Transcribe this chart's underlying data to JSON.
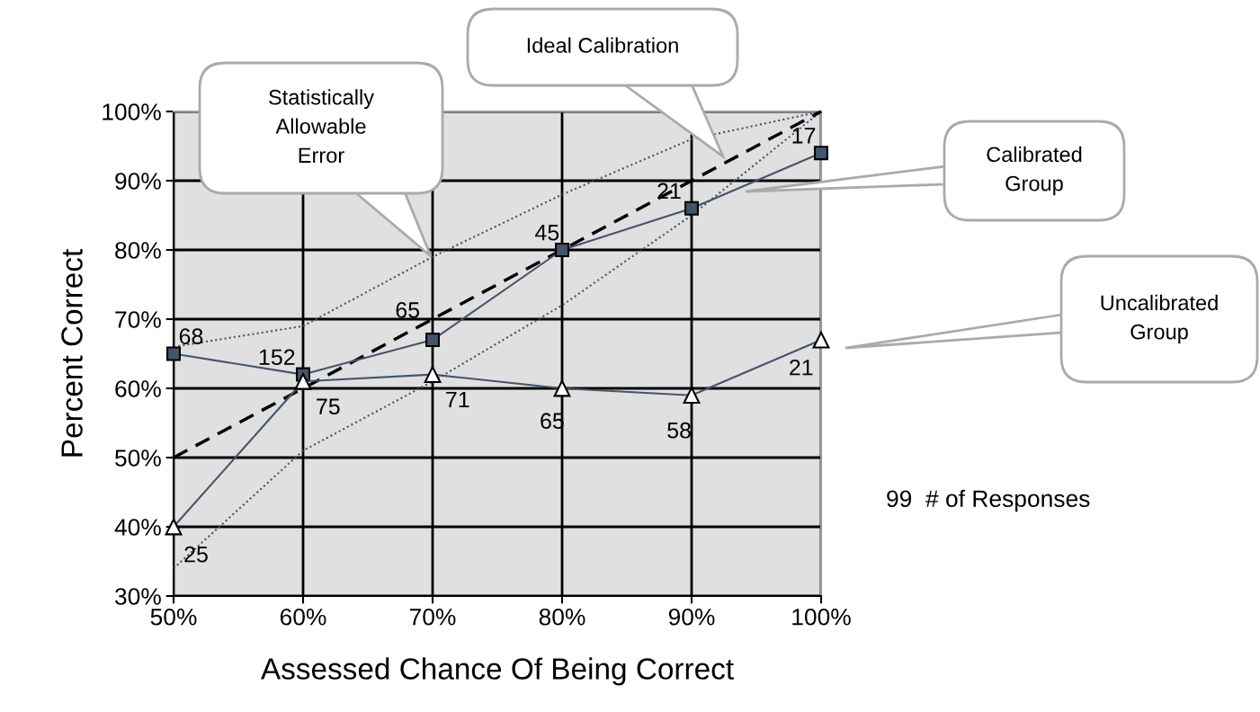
{
  "chart_data": {
    "type": "line",
    "xlabel": "Assessed Chance Of Being Correct",
    "ylabel": "Percent Correct",
    "x": [
      50,
      60,
      70,
      80,
      90,
      100
    ],
    "xlim": [
      50,
      100
    ],
    "xticks": [
      {
        "value": 50,
        "label": "50%"
      },
      {
        "value": 60,
        "label": "60%"
      },
      {
        "value": 70,
        "label": "70%"
      },
      {
        "value": 80,
        "label": "80%"
      },
      {
        "value": 90,
        "label": "90%"
      },
      {
        "value": 100,
        "label": "100%"
      }
    ],
    "ylim": [
      30,
      100
    ],
    "yticks": [
      {
        "value": 30,
        "label": "30%"
      },
      {
        "value": 40,
        "label": "40%"
      },
      {
        "value": 50,
        "label": "50%"
      },
      {
        "value": 60,
        "label": "60%"
      },
      {
        "value": 70,
        "label": "70%"
      },
      {
        "value": 80,
        "label": "80%"
      },
      {
        "value": 90,
        "label": "90%"
      },
      {
        "value": 100,
        "label": "100%"
      }
    ],
    "grid": true,
    "series": [
      {
        "color": "#44546a",
        "values": [
          66,
          69,
          79,
          88,
          96,
          100
        ],
        "marker": "none",
        "line_style": "dotted"
      },
      {
        "color": "#44546a",
        "values": [
          34,
          51,
          61,
          72,
          85,
          100
        ],
        "marker": "none",
        "line_style": "dotted"
      },
      {
        "color": "#000000",
        "values": [
          50,
          60,
          70,
          80,
          90,
          100
        ],
        "marker": "none",
        "line_style": "dashed"
      },
      {
        "color": "#44546a",
        "values": [
          65,
          62,
          67,
          80,
          86,
          94
        ],
        "marker": "square",
        "line_style": "solid"
      },
      {
        "color": "#44546a",
        "values": [
          40,
          61,
          62,
          60,
          59,
          67
        ],
        "marker": "triangle",
        "line_style": "solid"
      }
    ],
    "annotations": [
      "Statistically\nAllowable\nError",
      "Ideal Calibration",
      "Calibrated\nGroup",
      "Uncalibrated\nGroup",
      {
        "text": "68",
        "x": 50,
        "y": 65
      },
      {
        "text": "152",
        "x": 60,
        "y": 62
      },
      {
        "text": "65",
        "x": 70,
        "y": 67
      },
      {
        "text": "45",
        "x": 80,
        "y": 80
      },
      {
        "text": "21",
        "x": 90,
        "y": 86
      },
      {
        "text": "17",
        "x": 100,
        "y": 94
      },
      {
        "text": "25",
        "x": 50,
        "y": 40
      },
      {
        "text": "75",
        "x": 60,
        "y": 61
      },
      {
        "text": "71",
        "x": 70,
        "y": 62
      },
      {
        "text": "65",
        "x": 80,
        "y": 60
      },
      {
        "text": "58",
        "x": 90,
        "y": 59
      },
      {
        "text": "21",
        "x": 100,
        "y": 67
      },
      "99  # of Responses"
    ]
  }
}
